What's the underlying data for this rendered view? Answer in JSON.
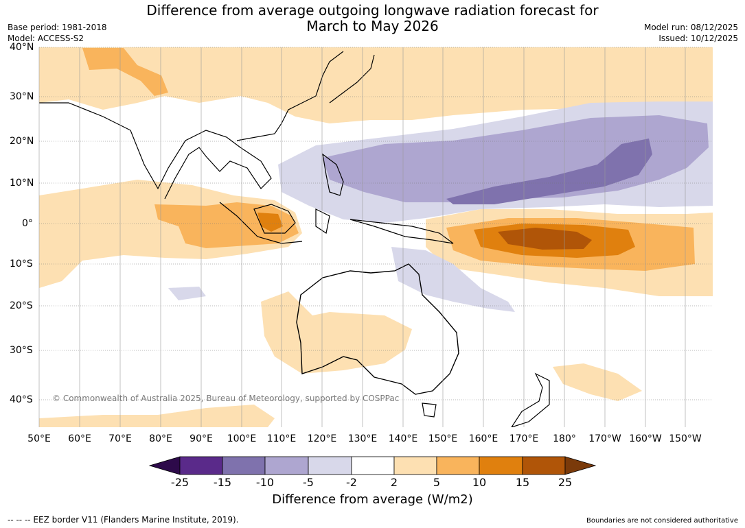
{
  "title": {
    "line1": "Difference from average outgoing longwave radiation forecast for",
    "line2": "March to May 2026"
  },
  "meta": {
    "base_period": "Base period: 1981-2018",
    "model": "Model: ACCESS-S2",
    "model_run": "Model run: 08/12/2025",
    "issued": "Issued: 10/12/2025"
  },
  "latitudes": [
    "40°N",
    "30°N",
    "20°N",
    "10°N",
    "0°",
    "10°S",
    "20°S",
    "30°S",
    "40°S"
  ],
  "longitudes": [
    "50°E",
    "60°E",
    "70°E",
    "80°E",
    "90°E",
    "100°E",
    "110°E",
    "120°E",
    "130°E",
    "140°E",
    "150°E",
    "160°E",
    "170°E",
    "180°",
    "170°W",
    "160°W",
    "150°W"
  ],
  "copyright": "© Commonwealth of Australia 2025, Bureau of Meteorology, supported by COSPPac",
  "legend": {
    "title": "Difference from average (W/m2)",
    "ticks": [
      "-25",
      "-15",
      "-10",
      "-5",
      "-2",
      "2",
      "5",
      "10",
      "15",
      "25"
    ],
    "colors": [
      "#2d0a4a",
      "#5a2a8a",
      "#7f72ad",
      "#aea6d0",
      "#d8d8ea",
      "#ffffff",
      "#fde0b2",
      "#f9b45c",
      "#e0800e",
      "#b05508",
      "#7a3a0a"
    ]
  },
  "footer": {
    "eez": "--  --  -- EEZ border V11 (Flanders Marine Institute, 2019).",
    "disclaimer": "Boundaries are not considered authoritative"
  }
}
